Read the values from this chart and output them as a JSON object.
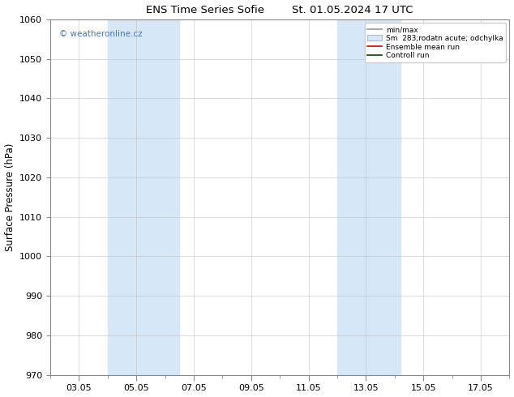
{
  "title": "ENS Time Series Sofie        St. 01.05.2024 17 UTC",
  "ylabel": "Surface Pressure (hPa)",
  "ylim": [
    970,
    1060
  ],
  "yticks": [
    970,
    980,
    990,
    1000,
    1010,
    1020,
    1030,
    1040,
    1050,
    1060
  ],
  "xtick_labels": [
    "03.05",
    "05.05",
    "07.05",
    "09.05",
    "11.05",
    "13.05",
    "15.05",
    "17.05"
  ],
  "shaded_color": "#d6e8f7",
  "bg_color": "#ffffff",
  "grid_color": "#bbbbbb",
  "watermark_text": "© weatheronline.cz",
  "watermark_color": "#4477bb",
  "legend_label_minmax": "min/max",
  "legend_label_sm": "Sm  283;rodatn acute; odchylka",
  "legend_label_ensemble": "Ensemble mean run",
  "legend_label_control": "Controll run"
}
